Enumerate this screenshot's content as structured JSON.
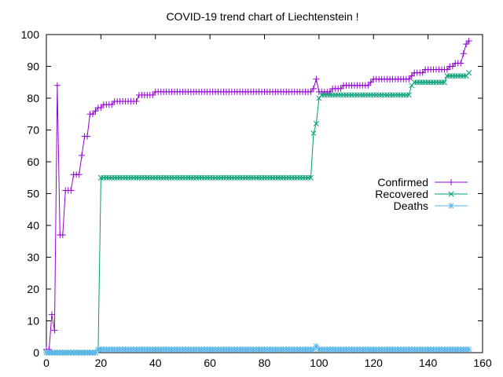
{
  "chart_data": {
    "type": "line",
    "title": "COVID-19 trend chart of Liechtenstein !",
    "xlabel": "",
    "ylabel": "",
    "xlim": [
      0,
      160
    ],
    "ylim": [
      0,
      100
    ],
    "x_ticks": [
      0,
      20,
      40,
      60,
      80,
      100,
      120,
      140,
      160
    ],
    "y_ticks": [
      0,
      10,
      20,
      30,
      40,
      50,
      60,
      70,
      80,
      90,
      100
    ],
    "grid": false,
    "legend_position": "right",
    "series": [
      {
        "name": "Confirmed",
        "color": "#9400d3",
        "marker": "plus",
        "points": [
          [
            0,
            1
          ],
          [
            1,
            1
          ],
          [
            2,
            12
          ],
          [
            3,
            7
          ],
          [
            4,
            84
          ],
          [
            5,
            37
          ],
          [
            6,
            37
          ],
          [
            7,
            51
          ],
          [
            8,
            51
          ],
          [
            9,
            51
          ],
          [
            10,
            56
          ],
          [
            11,
            56
          ],
          [
            12,
            56
          ],
          [
            13,
            62
          ],
          [
            14,
            68
          ],
          [
            15,
            68
          ],
          [
            16,
            75
          ],
          [
            17,
            75
          ],
          [
            18,
            76
          ],
          [
            19,
            77
          ],
          [
            20,
            77
          ],
          [
            21,
            78
          ],
          [
            22,
            78
          ],
          [
            23,
            78
          ],
          [
            24,
            78
          ],
          [
            25,
            79
          ],
          [
            26,
            79
          ],
          [
            27,
            79
          ],
          [
            28,
            79
          ],
          [
            29,
            79
          ],
          [
            30,
            79
          ],
          [
            31,
            79
          ],
          [
            32,
            79
          ],
          [
            33,
            79
          ],
          [
            34,
            81
          ],
          [
            35,
            81
          ],
          [
            36,
            81
          ],
          [
            37,
            81
          ],
          [
            38,
            81
          ],
          [
            39,
            81
          ],
          [
            40,
            82
          ],
          [
            97,
            82
          ],
          [
            98,
            83
          ],
          [
            99,
            86
          ],
          [
            100,
            82
          ],
          [
            104,
            82
          ],
          [
            105,
            83
          ],
          [
            108,
            83
          ],
          [
            109,
            84
          ],
          [
            118,
            84
          ],
          [
            119,
            85
          ],
          [
            120,
            86
          ],
          [
            133,
            86
          ],
          [
            134,
            87
          ],
          [
            135,
            88
          ],
          [
            138,
            88
          ],
          [
            139,
            89
          ],
          [
            147,
            89
          ],
          [
            148,
            90
          ],
          [
            149,
            90
          ],
          [
            150,
            91
          ],
          [
            152,
            91
          ],
          [
            153,
            94
          ],
          [
            154,
            97
          ],
          [
            155,
            98
          ]
        ]
      },
      {
        "name": "Recovered",
        "color": "#009e73",
        "marker": "cross",
        "points": [
          [
            0,
            0
          ],
          [
            18,
            0
          ],
          [
            19,
            1
          ],
          [
            20,
            55
          ],
          [
            97,
            55
          ],
          [
            98,
            69
          ],
          [
            99,
            72
          ],
          [
            100,
            80
          ],
          [
            101,
            81
          ],
          [
            133,
            81
          ],
          [
            134,
            84
          ],
          [
            135,
            85
          ],
          [
            146,
            85
          ],
          [
            147,
            87
          ],
          [
            152,
            87
          ],
          [
            153,
            87
          ],
          [
            154,
            87
          ],
          [
            155,
            88
          ]
        ]
      },
      {
        "name": "Deaths",
        "color": "#56b4e9",
        "marker": "star",
        "points": [
          [
            0,
            0
          ],
          [
            18,
            0
          ],
          [
            19,
            1
          ],
          [
            98,
            1
          ],
          [
            99,
            2
          ],
          [
            100,
            1
          ],
          [
            155,
            1
          ]
        ]
      }
    ]
  }
}
